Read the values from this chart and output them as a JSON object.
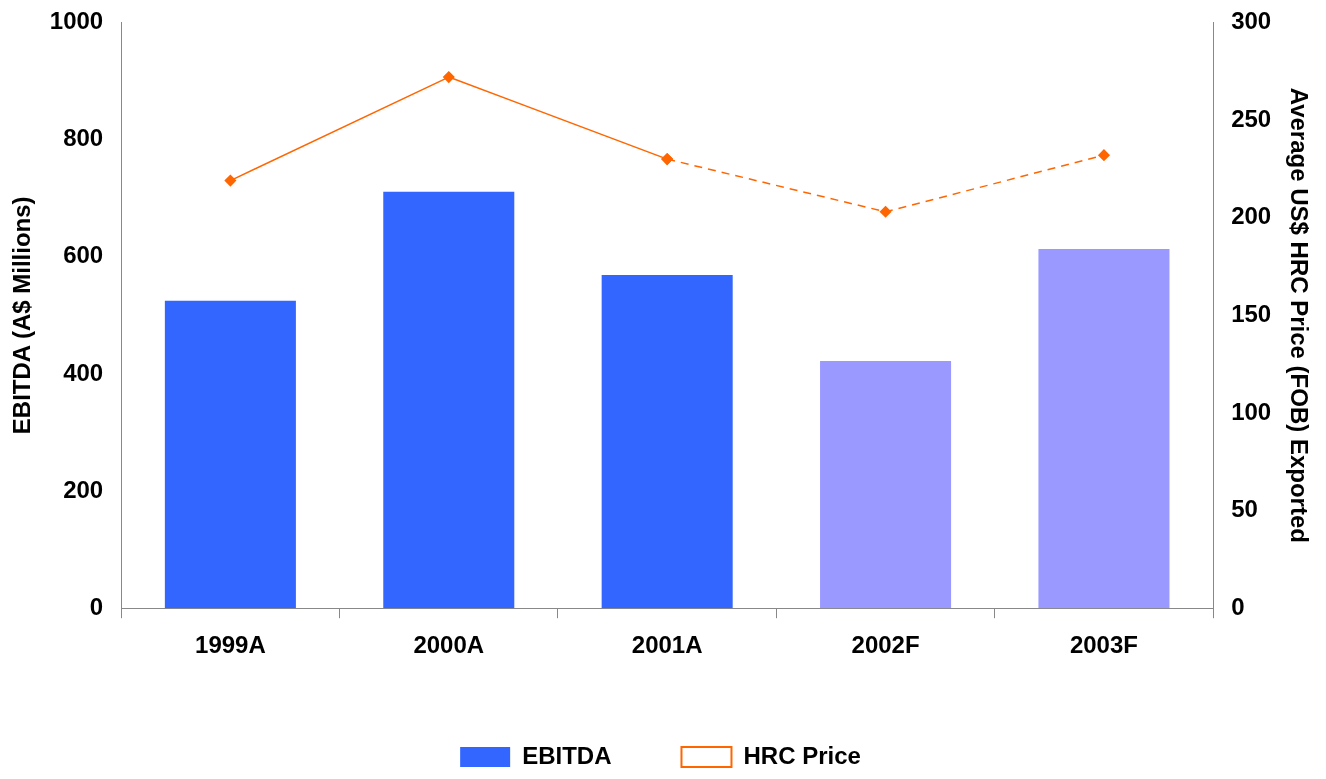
{
  "chart_data": {
    "type": "bar",
    "categories": [
      "1999A",
      "2000A",
      "2001A",
      "2002F",
      "2003F"
    ],
    "ylabel": "EBITDA (A$ Millions)",
    "y2label": "Average US$ HRC Price (FOB) Exported",
    "ylim": [
      0,
      1000
    ],
    "yticks": [
      0,
      200,
      400,
      600,
      800,
      1000
    ],
    "y2lim": [
      0,
      300
    ],
    "y2ticks": [
      0,
      50,
      100,
      150,
      200,
      250,
      300
    ],
    "legend": "bottom",
    "marker": "diamond",
    "series": [
      {
        "name": "EBITDA",
        "color": "#3366ff",
        "colors": [
          "#3366ff",
          "#3366ff",
          "#3366ff",
          "#9999ff",
          "#9999ff"
        ],
        "values": [
          525,
          711,
          569,
          422,
          613
        ]
      },
      {
        "name": "HRC Price",
        "type": "line",
        "axis": "y2",
        "color": "#ff6600",
        "line_style": "solid",
        "values": [
          219,
          272,
          230,
          null,
          null
        ]
      },
      {
        "type": "line",
        "axis": "y2",
        "color": "#ff6600",
        "line_style": "dashed",
        "values": [
          null,
          null,
          230,
          203,
          232
        ]
      }
    ]
  }
}
